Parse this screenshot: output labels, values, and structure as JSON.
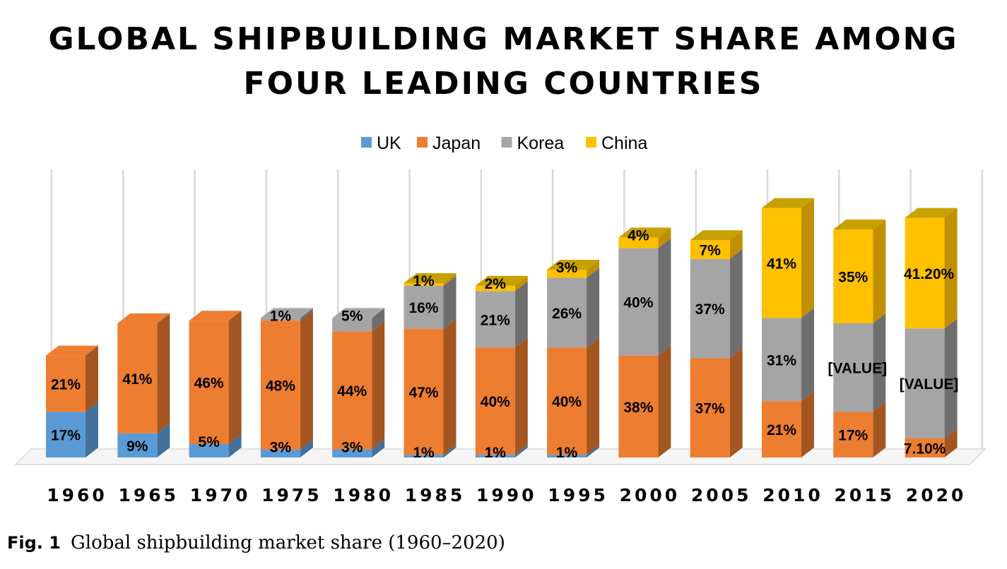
{
  "figure": {
    "label": "Fig. 1",
    "caption": "Global shipbuilding market share (1960–2020)"
  },
  "chart_data": {
    "type": "bar",
    "stacked": true,
    "three_d": true,
    "title": "GLOBAL SHIPBUILDING MARKET SHARE AMONG FOUR LEADING COUNTRIES",
    "title_lines": [
      "GLOBAL SHIPBUILDING MARKET SHARE AMONG",
      "FOUR LEADING COUNTRIES"
    ],
    "legend_position": "top",
    "grid": "vertical",
    "ylim": [
      0,
      100
    ],
    "categories": [
      "1960",
      "1965",
      "1970",
      "1975",
      "1980",
      "1985",
      "1990",
      "1995",
      "2000",
      "2005",
      "2010",
      "2015",
      "2020"
    ],
    "series": [
      {
        "name": "UK",
        "color": "#5B9BD5",
        "side": "#41719C",
        "top": "#5B9BD5",
        "values": [
          17,
          9,
          5,
          3,
          3,
          1,
          1,
          1,
          null,
          null,
          null,
          null,
          null
        ],
        "labels": [
          "17%",
          "9%",
          "5%",
          "3%",
          "3%",
          "1%",
          "1%",
          "1%",
          null,
          null,
          null,
          null,
          null
        ]
      },
      {
        "name": "Japan",
        "color": "#ED7D31",
        "side": "#A3561F",
        "top": "#ED7D31",
        "values": [
          21,
          41,
          46,
          48,
          44,
          47,
          40,
          40,
          38,
          37,
          21,
          17,
          7.1
        ],
        "labels": [
          "21%",
          "41%",
          "46%",
          "48%",
          "44%",
          "47%",
          "40%",
          "40%",
          "38%",
          "37%",
          "21%",
          "17%",
          "7.10%"
        ]
      },
      {
        "name": "Korea",
        "color": "#A5A5A5",
        "side": "#6E6E6E",
        "top": "#A5A5A5",
        "values": [
          null,
          null,
          null,
          1,
          5,
          16,
          21,
          26,
          40,
          37,
          31,
          33,
          41
        ],
        "labels": [
          null,
          null,
          null,
          "1%",
          "5%",
          "16%",
          "21%",
          "26%",
          "40%",
          "37%",
          "31%",
          "[VALUE]",
          "[VALUE]"
        ]
      },
      {
        "name": "China",
        "color": "#FFC000",
        "side": "#C09000",
        "top": "#C8A000",
        "values": [
          null,
          null,
          null,
          null,
          null,
          1,
          2,
          3,
          4,
          7,
          41,
          35,
          41.2
        ],
        "labels": [
          null,
          null,
          null,
          null,
          null,
          "1%",
          "2%",
          "3%",
          "4%",
          "7%",
          "41%",
          "35%",
          "41.20%"
        ]
      }
    ]
  }
}
